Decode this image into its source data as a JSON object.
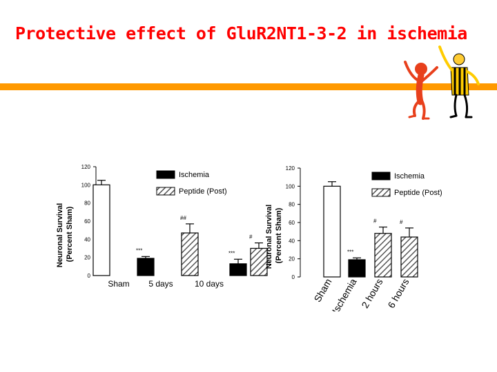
{
  "slide": {
    "title": "Protective effect of GluR2NT1-3-2 in ischemia",
    "accent_color": "#ff9900",
    "title_color": "#ff0000",
    "decoration": "cartoon-figures-icon"
  },
  "chart_data": [
    {
      "type": "bar",
      "ylabel_line1": "Neuronal Survival",
      "ylabel_line2": "(Percent Sham)",
      "ylim": [
        0,
        120
      ],
      "yticks": [
        0,
        20,
        40,
        60,
        80,
        100,
        120
      ],
      "legend": [
        {
          "name": "Ischemia",
          "fill": "#000000"
        },
        {
          "name": "Peptide (Post)",
          "fill": "hatch"
        }
      ],
      "legend_position": "top-right",
      "bars": [
        {
          "group": "Sham",
          "fill": "white",
          "value": 100,
          "err": 5,
          "mark": ""
        },
        {
          "group": "5 days",
          "fill": "#000000",
          "value": 19,
          "err": 2,
          "mark": "***"
        },
        {
          "group": "5 days",
          "fill": "hatch",
          "value": 47,
          "err": 10,
          "mark": "##"
        },
        {
          "group": "10 days",
          "fill": "#000000",
          "value": 13,
          "err": 5,
          "mark": "***"
        },
        {
          "group": "10 days",
          "fill": "hatch",
          "value": 30,
          "err": 6,
          "mark": "#"
        }
      ],
      "categories": [
        "Sham",
        "5 days",
        "10 days"
      ]
    },
    {
      "type": "bar",
      "ylabel_line1": "Neuronal Survival",
      "ylabel_line2": "(Percent Sham)",
      "ylim": [
        0,
        120
      ],
      "yticks": [
        0,
        20,
        40,
        60,
        80,
        100,
        120
      ],
      "legend": [
        {
          "name": "Ischemia",
          "fill": "#000000"
        },
        {
          "name": "Peptide (Post)",
          "fill": "hatch"
        }
      ],
      "legend_position": "top-right",
      "bars": [
        {
          "group": "Sham",
          "fill": "white",
          "value": 100,
          "err": 5,
          "mark": ""
        },
        {
          "group": "Ischemia",
          "fill": "#000000",
          "value": 19,
          "err": 2,
          "mark": "***"
        },
        {
          "group": "2 hours",
          "fill": "hatch",
          "value": 48,
          "err": 7,
          "mark": "#"
        },
        {
          "group": "6 hours",
          "fill": "hatch",
          "value": 44,
          "err": 10,
          "mark": "#"
        }
      ],
      "categories": [
        "Sham",
        "Ischemia",
        "2 hours",
        "6 hours"
      ]
    }
  ]
}
